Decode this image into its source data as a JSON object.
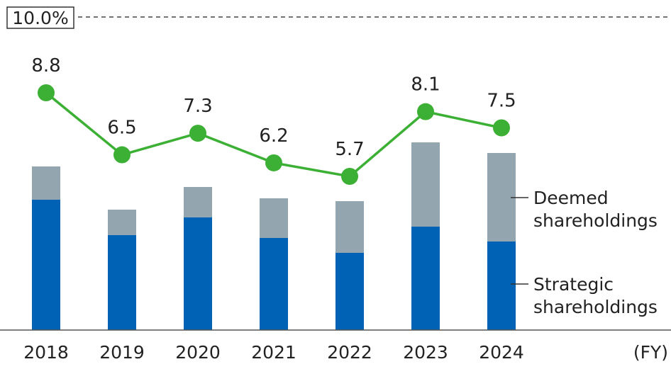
{
  "chart_data": {
    "type": "bar",
    "stacked": true,
    "categories": [
      "2018",
      "2019",
      "2020",
      "2021",
      "2022",
      "2023",
      "2024"
    ],
    "x_unit_label": "(FY)",
    "reference_line": {
      "label": "10.0%",
      "value": 10.0,
      "style": "dashed"
    },
    "series": [
      {
        "name": "Strategic shareholdings",
        "type": "bar",
        "color": "#0062b4",
        "values": [
          18.4,
          13.4,
          15.9,
          13.0,
          10.9,
          14.6,
          12.5
        ]
      },
      {
        "name": "Deemed shareholdings",
        "type": "bar",
        "color": "#93a6b0",
        "values": [
          4.7,
          3.6,
          4.3,
          5.6,
          7.3,
          11.9,
          12.5
        ]
      },
      {
        "type": "line",
        "color": "#3cb034",
        "values": [
          8.8,
          6.5,
          7.3,
          6.2,
          5.7,
          8.1,
          7.5
        ],
        "labels": [
          "8.8",
          "6.5",
          "7.3",
          "6.2",
          "5.7",
          "8.1",
          "7.5"
        ]
      }
    ],
    "legend": [
      {
        "label_lines": [
          "Deemed",
          "shareholdings"
        ]
      },
      {
        "label_lines": [
          "Strategic",
          "shareholdings"
        ]
      }
    ],
    "legend_placement": "right",
    "grid": false
  }
}
